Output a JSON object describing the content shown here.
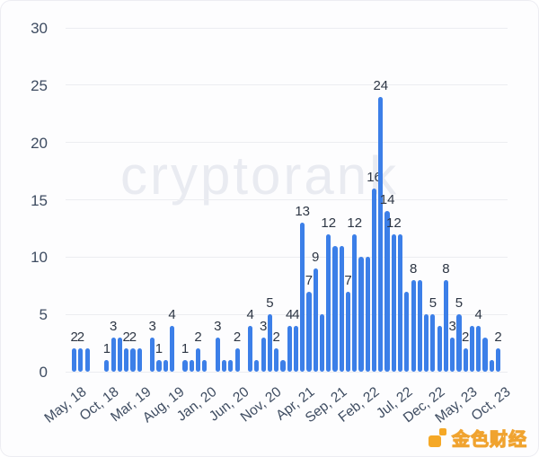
{
  "watermark": {
    "text": "cryptorank"
  },
  "branding": {
    "logo_text": "金色财经",
    "logo_color": "#f5a826"
  },
  "chart_data": {
    "type": "bar",
    "title": "",
    "xlabel": "",
    "ylabel": "",
    "ylim": [
      0,
      30
    ],
    "y_ticks": [
      0,
      5,
      10,
      15,
      20,
      25,
      30
    ],
    "grid": true,
    "legend": false,
    "bar_color": "#3c7fe8",
    "axis_text_color": "#3e4c61",
    "label_text_color": "#2d3644",
    "x_tick_every": 5,
    "x_tick_labels": [
      "May, 18",
      "Oct, 18",
      "Mar, 19",
      "Aug, 19",
      "Jan, 20",
      "Jun, 20",
      "Nov, 20",
      "Apr, 21",
      "Sep, 21",
      "Feb, 22",
      "Jul, 22",
      "Dec, 22",
      "May, 23",
      "Oct, 23"
    ],
    "values": [
      2,
      2,
      2,
      0,
      0,
      1,
      3,
      3,
      2,
      2,
      2,
      0,
      3,
      1,
      1,
      4,
      0,
      1,
      1,
      2,
      1,
      0,
      3,
      1,
      1,
      2,
      0,
      4,
      1,
      3,
      5,
      2,
      1,
      4,
      4,
      13,
      7,
      9,
      5,
      12,
      11,
      11,
      7,
      12,
      10,
      10,
      16,
      24,
      14,
      12,
      12,
      7,
      8,
      8,
      5,
      5,
      4,
      8,
      3,
      5,
      2,
      4,
      4,
      3,
      1,
      2
    ],
    "shown_labels": [
      "2",
      "2",
      "",
      "",
      "",
      "1",
      "3",
      "",
      "2",
      "2",
      "",
      "",
      "3",
      "1",
      "",
      "4",
      "",
      "1",
      "",
      "2",
      "",
      "",
      "3",
      "",
      "",
      "2",
      "",
      "4",
      "",
      "3",
      "5",
      "2",
      "",
      "4",
      "4",
      "13",
      "7",
      "9",
      "",
      "12",
      "",
      "",
      "7",
      "12",
      "",
      "",
      "16",
      "24",
      "14",
      "12",
      "",
      "",
      "8",
      "",
      "",
      "5",
      "",
      "8",
      "3",
      "5",
      "2",
      "",
      "4",
      "",
      "",
      "2"
    ]
  }
}
